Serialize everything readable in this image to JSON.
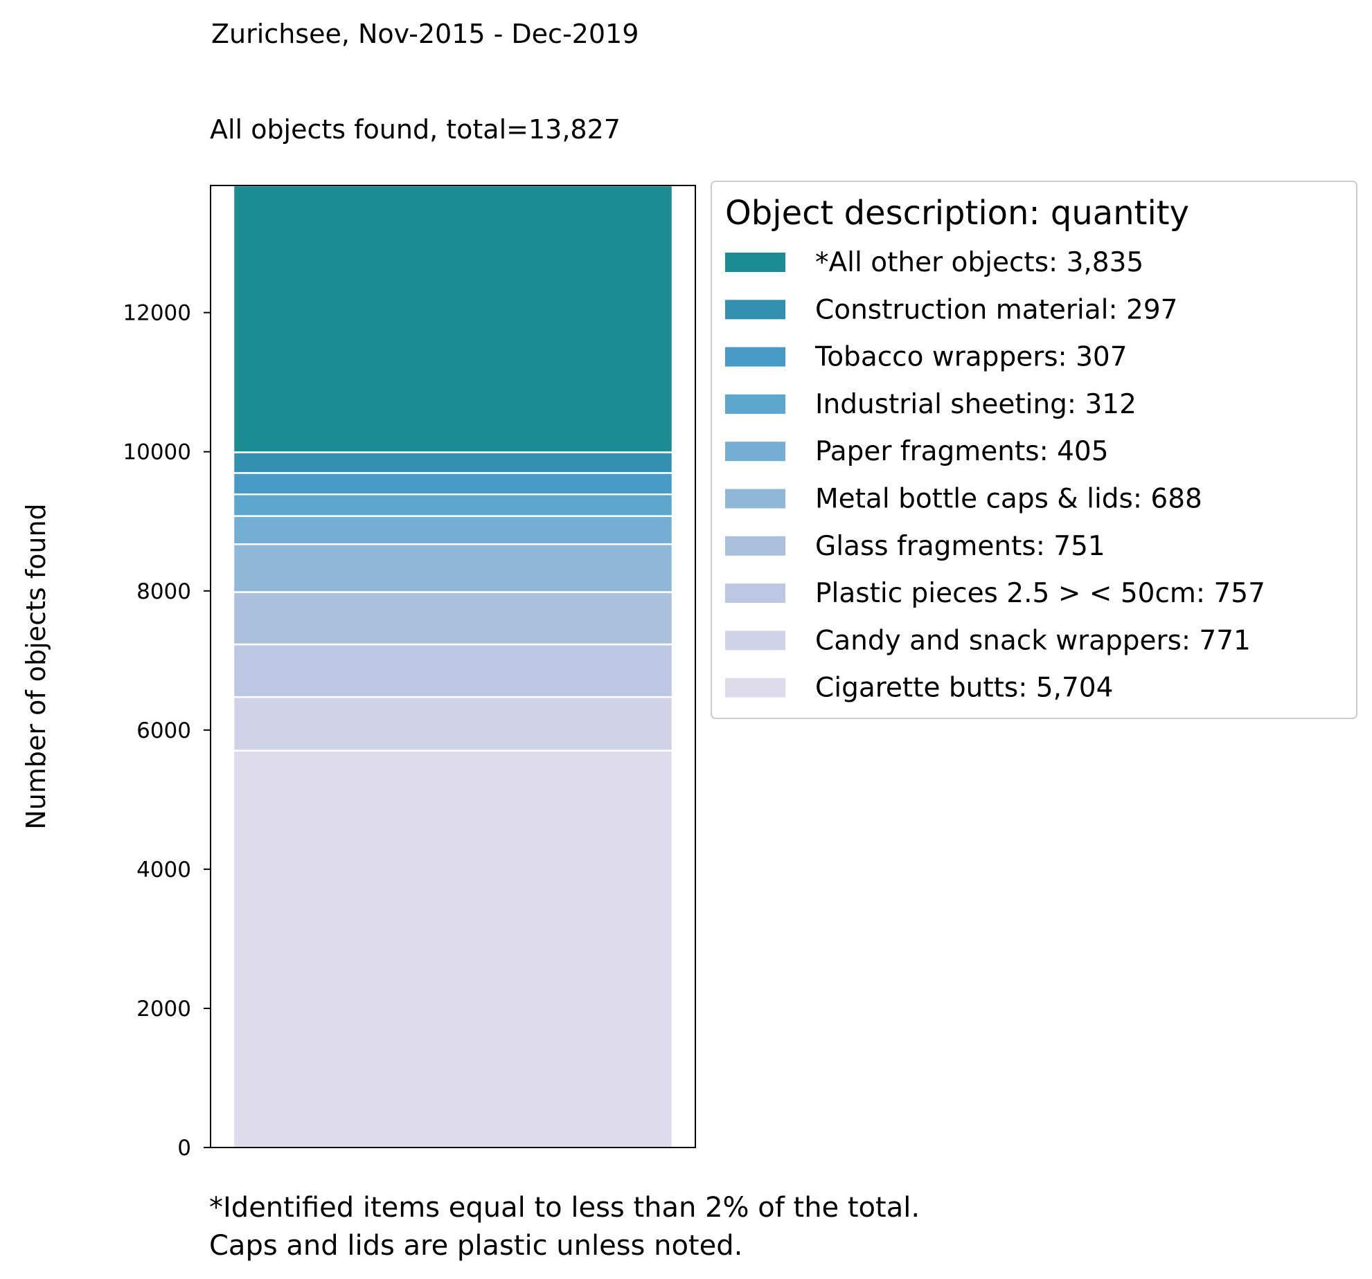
{
  "chart_data": {
    "type": "bar",
    "stacked": true,
    "suptitle": "Zurichsee, Nov-2015 - Dec-2019",
    "title": "All objects found,  total=13,827",
    "ylabel": "Number of objects found",
    "xlabel": "",
    "ylim": [
      0,
      13827
    ],
    "yticks": [
      0,
      2000,
      4000,
      6000,
      8000,
      10000,
      12000
    ],
    "grid": false,
    "legend": {
      "title": "Object description: quantity",
      "placement": "outside-upper-right"
    },
    "series": [
      {
        "label": "Cigarette butts: 5,704",
        "value": 5704,
        "color": "#dddbec"
      },
      {
        "label": "Candy and snack wrappers: 771",
        "value": 771,
        "color": "#d0d2e7"
      },
      {
        "label": "Plastic pieces 2.5 > < 50cm: 757",
        "value": 757,
        "color": "#bcc8e3"
      },
      {
        "label": "Glass fragments: 751",
        "value": 751,
        "color": "#aac0dc"
      },
      {
        "label": "Metal bottle caps & lids: 688",
        "value": 688,
        "color": "#8fb8d8"
      },
      {
        "label": "Paper fragments: 405",
        "value": 405,
        "color": "#74afd3"
      },
      {
        "label": "Industrial sheeting: 312",
        "value": 312,
        "color": "#5da6ce"
      },
      {
        "label": "Tobacco wrappers: 307",
        "value": 307,
        "color": "#489bc7"
      },
      {
        "label": "Construction material: 297",
        "value": 297,
        "color": "#3490b0"
      },
      {
        "label": "*All other objects: 3,835",
        "value": 3835,
        "color": "#1c8c93"
      }
    ],
    "footnote": [
      "*Identified items equal to less than 2% of the total.",
      "Caps and lids are plastic unless noted."
    ]
  }
}
